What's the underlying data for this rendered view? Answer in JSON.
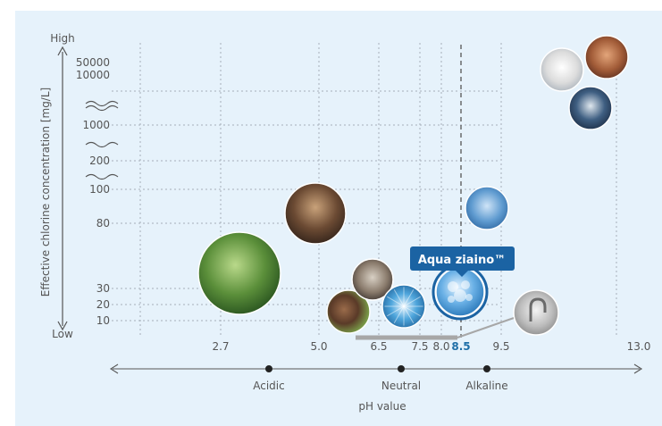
{
  "colors": {
    "panel_bg": "#e6f2fb",
    "grid": "#9aa6b2",
    "text": "#555555",
    "accent": "#1f6fa8",
    "callout_bg": "#1b63a3",
    "callout_text": "#ffffff",
    "highlight_value": "#1f6fa8",
    "bar": "#a7a7a7"
  },
  "chart_data": {
    "type": "scatter",
    "ylabel": "Effective chlorine concentration [mg/L]",
    "xlabel": "pH value",
    "y_high_label": "High",
    "y_low_label": "Low",
    "y_ticks": [
      "50000",
      "10000",
      "1000",
      "200",
      "100",
      "80",
      "30",
      "20",
      "10"
    ],
    "x_ticks": [
      "2.7",
      "5.0",
      "6.5",
      "7.5",
      "8.0",
      "8.5",
      "9.5",
      "13.0"
    ],
    "x_highlight": "8.5",
    "ph_scale": [
      {
        "label": "Acidic",
        "ph": 3.8
      },
      {
        "label": "Neutral",
        "ph": 7.0
      },
      {
        "label": "Alkaline",
        "ph": 9.0
      }
    ],
    "callout": {
      "label": "Aqua ziaino™",
      "ph": 8.5,
      "concentration_level": "30"
    },
    "points": [
      {
        "name": "plants-spray-photo",
        "ph": 2.7,
        "concentration_level": "30"
      },
      {
        "name": "hands-washing-photo",
        "ph": 5.0,
        "concentration_level": "80"
      },
      {
        "name": "horse-photo",
        "ph": 6.2,
        "concentration_level": "15"
      },
      {
        "name": "sink-cleaning-photo",
        "ph": 6.5,
        "concentration_level": "30"
      },
      {
        "name": "water-spray-photo",
        "ph": 7.2,
        "concentration_level": "15"
      },
      {
        "name": "aqua-ziaino-photo",
        "ph": 8.5,
        "concentration_level": "20"
      },
      {
        "name": "lab-gloves-photo",
        "ph": 9.5,
        "concentration_level": "90"
      },
      {
        "name": "faucet-photo",
        "ph": 10.8,
        "concentration_level": "15"
      },
      {
        "name": "laundry-photo",
        "ph": 12.2,
        "concentration_level": "10000"
      },
      {
        "name": "dog-photo",
        "ph": 12.9,
        "concentration_level": "50000"
      },
      {
        "name": "medical-staff-photo",
        "ph": 12.5,
        "concentration_level": "1000"
      }
    ]
  }
}
